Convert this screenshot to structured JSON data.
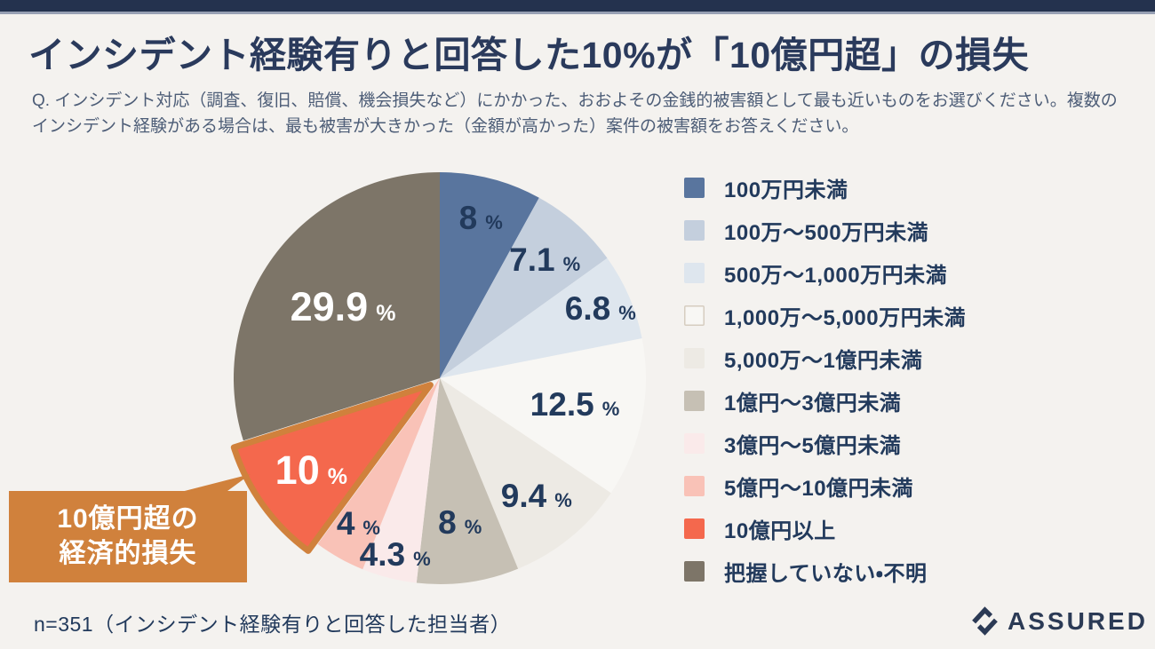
{
  "page": {
    "title": "インシデント経験有りと回答した10%が「10億円超」の損失",
    "subtitle": "Q. インシデント対応（調査、復旧、賠償、機会損失など）にかかった、おおよその金銭的被害額として最も近いものをお選びください。複数のインシデント経験がある場合は、最も被害が大きかった（金額が高かった）案件の被害額をお答えください。",
    "footnote": "n=351（インシデント経験有りと回答した担当者）"
  },
  "callout": {
    "line1": "10億円超の",
    "line2": "経済的損失"
  },
  "logo": {
    "text": "ASSURED"
  },
  "colors": {
    "background": "#f4f2ef",
    "accent_bar": "#24324e",
    "accent_bar_edge": "#97a0b4",
    "title": "#2a3a5c",
    "subtitle": "#4d5d77",
    "label": "#223a5c",
    "label_inside": "#ffffff",
    "callout_bg": "#d0813c",
    "callout_text": "#ffffff",
    "logo": "#2b3a55"
  },
  "chart_data": {
    "type": "pie",
    "title": "インシデント対応にかかった金銭的被害額",
    "unit": "%",
    "start_angle_deg": 0,
    "direction": "clockwise",
    "legend_position": "right",
    "slices": [
      {
        "label": "100万円未満",
        "value": 8,
        "color": "#59759e"
      },
      {
        "label": "100万～500万円未満",
        "value": 7.1,
        "color": "#c4cfdd"
      },
      {
        "label": "500万～1,000万円未満",
        "value": 6.8,
        "color": "#dee6ee"
      },
      {
        "label": "1,000万～5,000万円未満",
        "value": 12.5,
        "color": "#f8f7f4",
        "swatch_border": "#d6cdc0"
      },
      {
        "label": "5,000万～1億円未満",
        "value": 9.4,
        "color": "#edeae4"
      },
      {
        "label": "1億円～3億円未満",
        "value": 8,
        "color": "#c6c0b4"
      },
      {
        "label": "3億円～5億円未満",
        "value": 4.3,
        "color": "#faeaea"
      },
      {
        "label": "5億円～10億円未満",
        "value": 4,
        "color": "#f9c2b7"
      },
      {
        "label": "10億円以上",
        "value": 10,
        "color": "#f4684d",
        "stroke": "#d0813c",
        "exploded": true,
        "label_inside": true
      },
      {
        "label": "把握していない・不明",
        "value": 29.9,
        "color": "#7d7568",
        "label_inside": true
      }
    ]
  }
}
